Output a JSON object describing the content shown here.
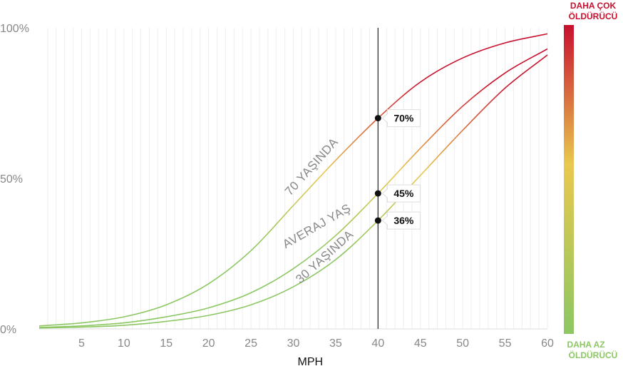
{
  "chart_data": {
    "type": "line",
    "title": "",
    "xlabel": "MPH",
    "ylabel": "",
    "xlim": [
      0,
      60
    ],
    "ylim": [
      0,
      100
    ],
    "x_ticks": [
      "5",
      "10",
      "15",
      "20",
      "25",
      "30",
      "35",
      "40",
      "45",
      "50",
      "55",
      "60"
    ],
    "y_ticks": [
      "0%",
      "50%",
      "100%"
    ],
    "grid": true,
    "series": [
      {
        "name": "70 YAŞINDA",
        "x": [
          0,
          5,
          10,
          15,
          20,
          25,
          30,
          35,
          40,
          45,
          50,
          55,
          60
        ],
        "y": [
          1,
          2,
          4,
          8,
          15,
          26,
          41,
          56,
          70,
          82,
          90,
          95,
          98
        ]
      },
      {
        "name": "AVERAJ YAŞ",
        "x": [
          0,
          5,
          10,
          15,
          20,
          25,
          30,
          35,
          40,
          45,
          50,
          55,
          60
        ],
        "y": [
          0.5,
          1,
          2,
          4,
          7,
          12,
          20,
          31,
          45,
          60,
          74,
          85,
          93
        ]
      },
      {
        "name": "30 YAŞINDA",
        "x": [
          0,
          5,
          10,
          15,
          20,
          25,
          30,
          35,
          40,
          45,
          50,
          55,
          60
        ],
        "y": [
          0.3,
          0.6,
          1.2,
          2.5,
          4.5,
          8,
          14,
          23,
          36,
          51,
          66,
          80,
          91
        ]
      }
    ],
    "reference_line": {
      "x": 40
    },
    "markers": [
      {
        "x": 40,
        "y": 70,
        "label": "70%"
      },
      {
        "x": 40,
        "y": 45,
        "label": "45%"
      },
      {
        "x": 40,
        "y": 36,
        "label": "36%"
      }
    ],
    "color_scale": {
      "top_label_line1": "DAHA ÇOK",
      "top_label_line2": "ÖLDÜRÜCÜ",
      "bottom_label_line1": "DAHA AZ",
      "bottom_label_line2": "ÖLDÜRÜCÜ",
      "low_color": "#8cc763",
      "mid_color": "#e9c84f",
      "high_color": "#c8102e"
    }
  }
}
